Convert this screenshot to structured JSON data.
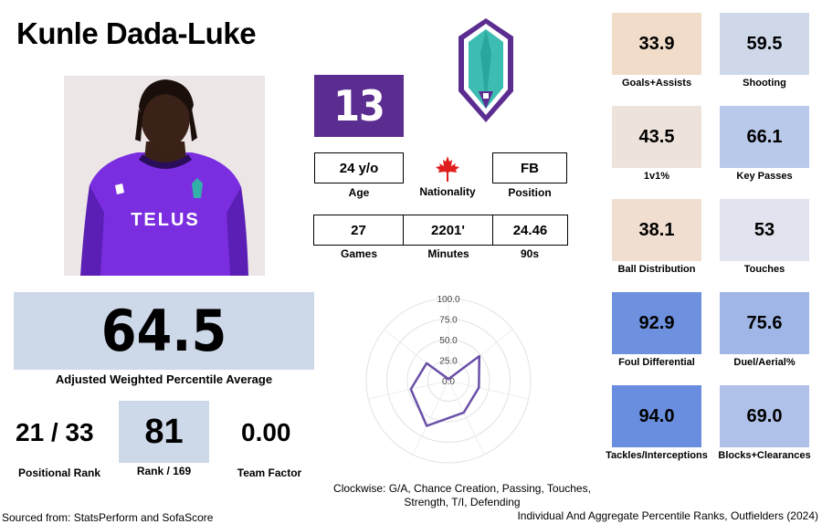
{
  "player": {
    "name": "Kunle Dada-Luke",
    "number": "13",
    "jersey_text": "TELUS"
  },
  "info_row1": [
    {
      "value": "24 y/o",
      "label": "Age"
    },
    {
      "value": "",
      "label": "Nationality",
      "flag": "canada-flag-icon"
    },
    {
      "value": "FB",
      "label": "Position"
    }
  ],
  "info_row2": [
    {
      "value": "27",
      "label": "Games"
    },
    {
      "value": "2201'",
      "label": "Minutes"
    },
    {
      "value": "24.46",
      "label": "90s"
    }
  ],
  "score": {
    "value": "64.5",
    "label": "Adjusted Weighted Percentile Average"
  },
  "bottom_stats": {
    "positional_rank": {
      "value": "21 / 33",
      "label": "Positional Rank"
    },
    "rank": {
      "value": "81",
      "label": "Rank / 169"
    },
    "team_factor": {
      "value": "0.00",
      "label": "Team Factor"
    }
  },
  "tiles": [
    {
      "value": "33.9",
      "label": "Goals+Assists",
      "color": "#f1dcc9"
    },
    {
      "value": "59.5",
      "label": "Shooting",
      "color": "#cfd8e9"
    },
    {
      "value": "43.5",
      "label": "1v1%",
      "color": "#ede3da"
    },
    {
      "value": "66.1",
      "label": "Key Passes",
      "color": "#b9c9e9"
    },
    {
      "value": "38.1",
      "label": "Ball Distribution",
      "color": "#f0dfd0"
    },
    {
      "value": "53",
      "label": "Touches",
      "color": "#e1e4ee"
    },
    {
      "value": "92.9",
      "label": "Foul Differential",
      "color": "#6d90df"
    },
    {
      "value": "75.6",
      "label": "Duel/Aerial%",
      "color": "#9fb6e7"
    },
    {
      "value": "94.0",
      "label": "Tackles/Interceptions",
      "color": "#6a8edf"
    },
    {
      "value": "69.0",
      "label": "Blocks+Clearances",
      "color": "#afc1e8"
    }
  ],
  "chart_data": {
    "type": "radar",
    "rticks": [
      "0.0",
      "25.0",
      "50.0",
      "75.0",
      "100.0"
    ],
    "rmax": 100,
    "values": [
      2,
      48,
      38,
      43,
      61,
      47,
      34
    ],
    "color": "#6a4fa8"
  },
  "radar_caption_line1": "Clockwise: G/A, Chance Creation, Passing, Touches,",
  "radar_caption_line2": "Strength, T/I, Defending",
  "footer": {
    "left": "Sourced from: StatsPerform and SofaScore",
    "right": "Individual And Aggregate Percentile Ranks, Outfielders (2024)"
  }
}
